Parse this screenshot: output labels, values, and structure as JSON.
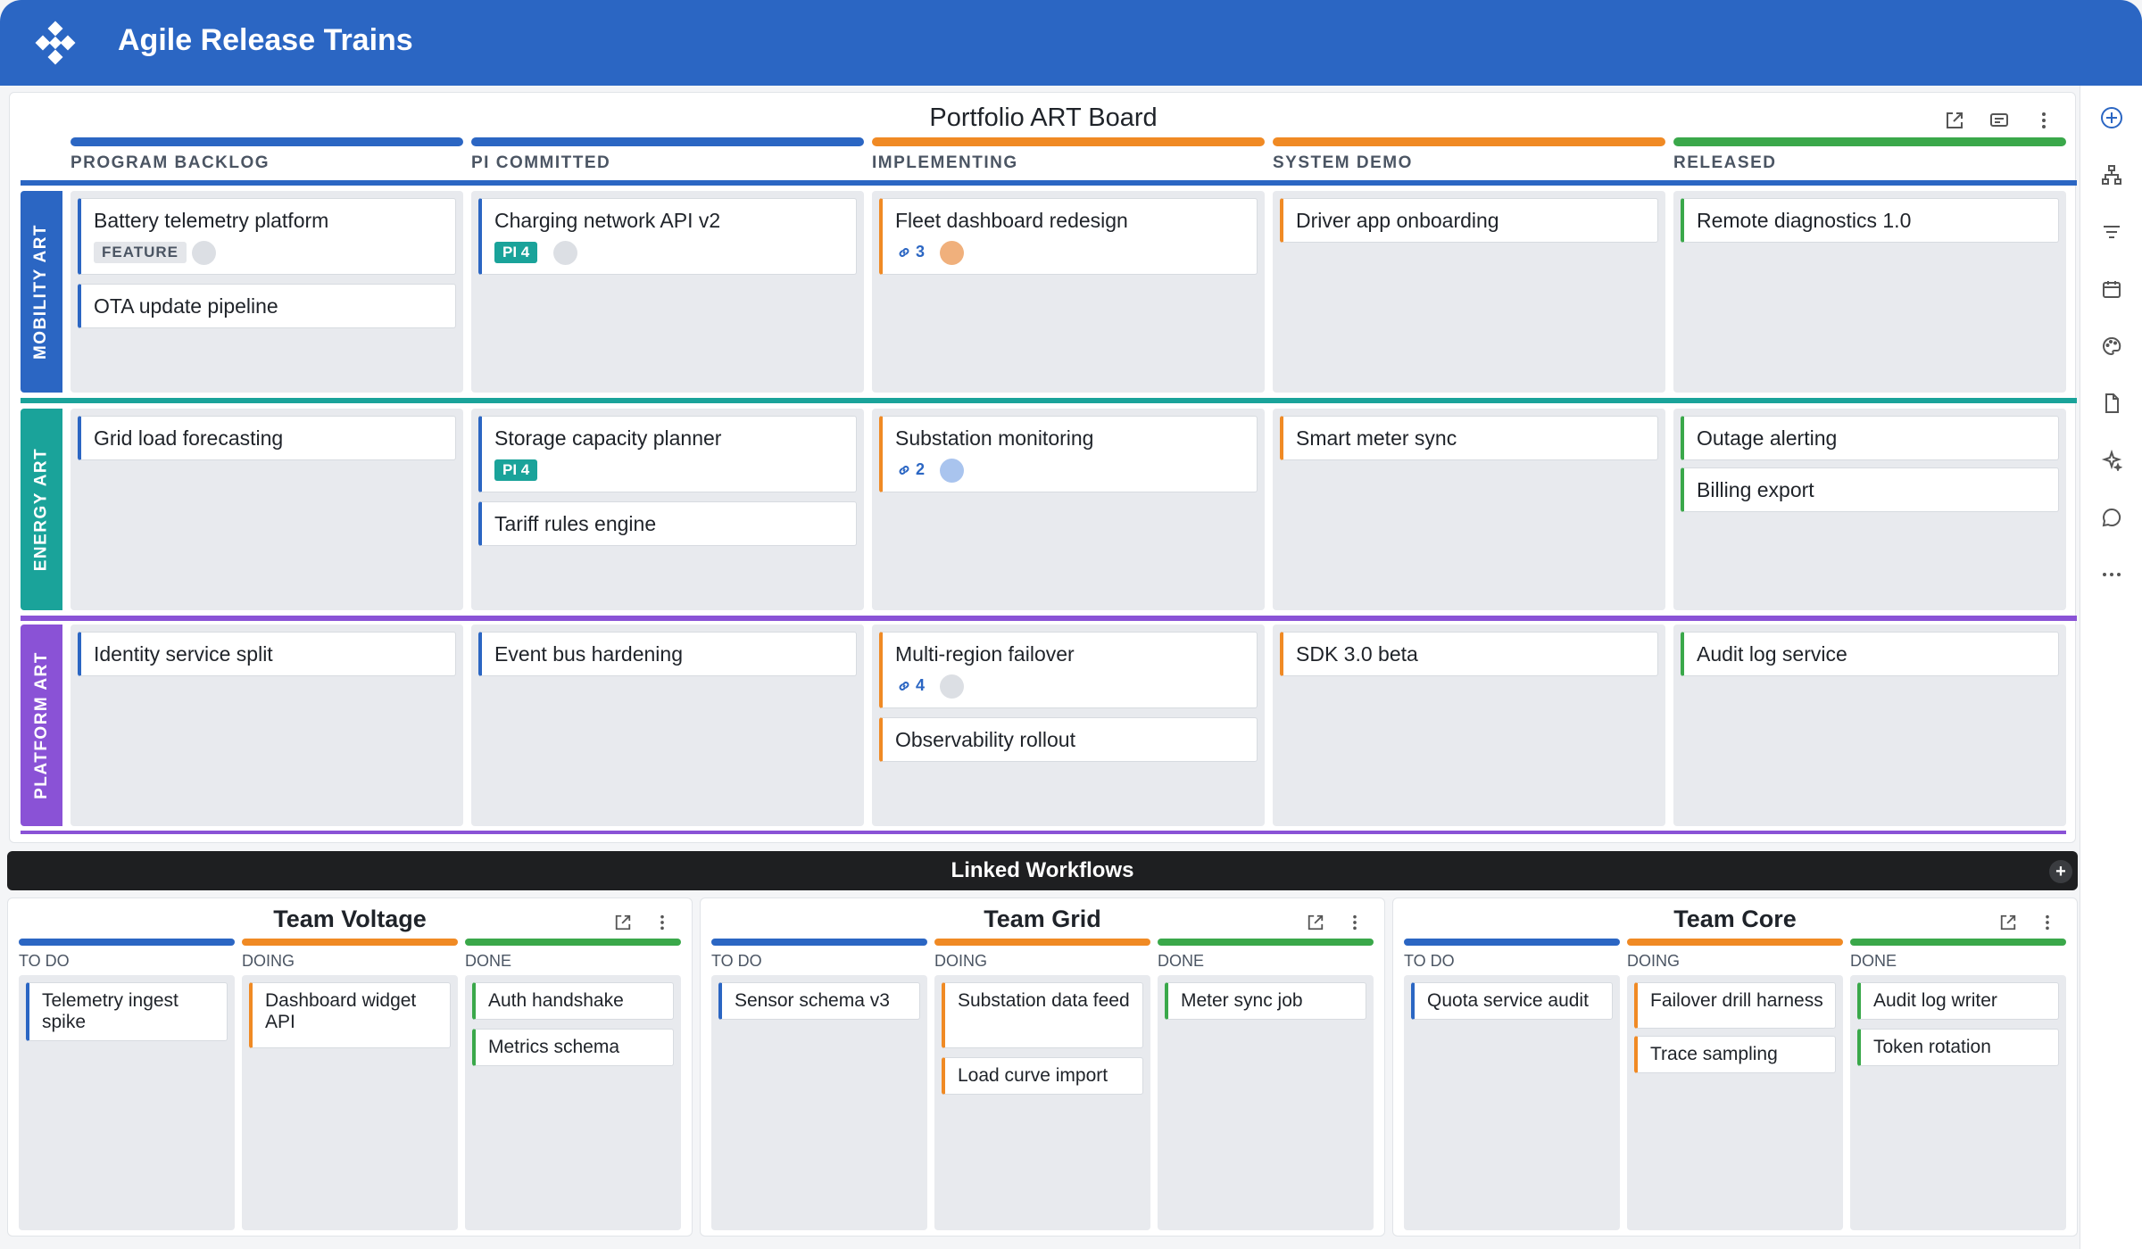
{
  "app": {
    "title": "Agile Release Trains"
  },
  "board": {
    "title": "Portfolio ART Board",
    "columns": [
      {
        "label": "PROGRAM BACKLOG",
        "color": "#2b66c3"
      },
      {
        "label": "PI COMMITTED",
        "color": "#2b66c3"
      },
      {
        "label": "IMPLEMENTING",
        "color": "#f08a24"
      },
      {
        "label": "SYSTEM DEMO",
        "color": "#f08a24"
      },
      {
        "label": "RELEASED",
        "color": "#3aa84a"
      }
    ],
    "lanes": [
      {
        "label": "MOBILITY ART",
        "color": "#2b66c3",
        "cards": {
          "backlog": [
            {
              "title": "Battery telemetry platform",
              "tag": "FEATURE"
            },
            {
              "title": "OTA update pipeline"
            }
          ],
          "committed": [
            {
              "title": "Charging network API v2",
              "tag": "PI 4"
            }
          ],
          "implementing": [
            {
              "title": "Fleet dashboard redesign",
              "links": "3"
            }
          ],
          "demo": [
            {
              "title": "Driver app onboarding"
            }
          ],
          "released": [
            {
              "title": "Remote diagnostics 1.0"
            }
          ]
        }
      },
      {
        "label": "ENERGY ART",
        "color": "#1aa39a",
        "cards": {
          "backlog": [
            {
              "title": "Grid load forecasting"
            }
          ],
          "committed": [
            {
              "title": "Storage capacity planner",
              "tag": "PI 4"
            },
            {
              "title": "Tariff rules engine"
            }
          ],
          "implementing": [
            {
              "title": "Substation monitoring",
              "links": "2"
            }
          ],
          "demo": [
            {
              "title": "Smart meter sync"
            }
          ],
          "released": [
            {
              "title": "Outage alerting"
            },
            {
              "title": "Billing export"
            }
          ]
        }
      },
      {
        "label": "PLATFORM ART",
        "color": "#8a52d6",
        "cards": {
          "backlog": [
            {
              "title": "Identity service split"
            }
          ],
          "committed": [
            {
              "title": "Event bus hardening"
            }
          ],
          "implementing": [
            {
              "title": "Multi-region failover",
              "links": "4"
            },
            {
              "title": "Observability rollout"
            }
          ],
          "demo": [
            {
              "title": "SDK 3.0 beta"
            }
          ],
          "released": [
            {
              "title": "Audit log service"
            }
          ]
        }
      }
    ]
  },
  "linked": {
    "title": "Linked Workflows",
    "add": "+",
    "teams": [
      {
        "name": "Team Voltage",
        "columns": [
          "TO DO",
          "DOING",
          "DONE"
        ],
        "todo": [
          "Telemetry ingest spike"
        ],
        "doing": [
          "Dashboard widget API"
        ],
        "done": [
          "Auth handshake",
          "Metrics schema"
        ]
      },
      {
        "name": "Team Grid",
        "columns": [
          "TO DO",
          "DOING",
          "DONE"
        ],
        "todo": [
          "Sensor schema v3"
        ],
        "doing": [
          "Substation data feed",
          "Load curve import"
        ],
        "done": [
          "Meter sync job"
        ]
      },
      {
        "name": "Team Core",
        "columns": [
          "TO DO",
          "DOING",
          "DONE"
        ],
        "todo": [
          "Quota service audit"
        ],
        "doing": [
          "Failover drill harness",
          "Trace sampling"
        ],
        "done": [
          "Audit log writer",
          "Token rotation"
        ]
      }
    ]
  },
  "rail_icons": [
    "add-circle-icon",
    "hierarchy-icon",
    "filter-icon",
    "calendar-icon",
    "palette-icon",
    "document-icon",
    "sparkle-icon",
    "chat-icon",
    "more-horizontal-icon"
  ]
}
